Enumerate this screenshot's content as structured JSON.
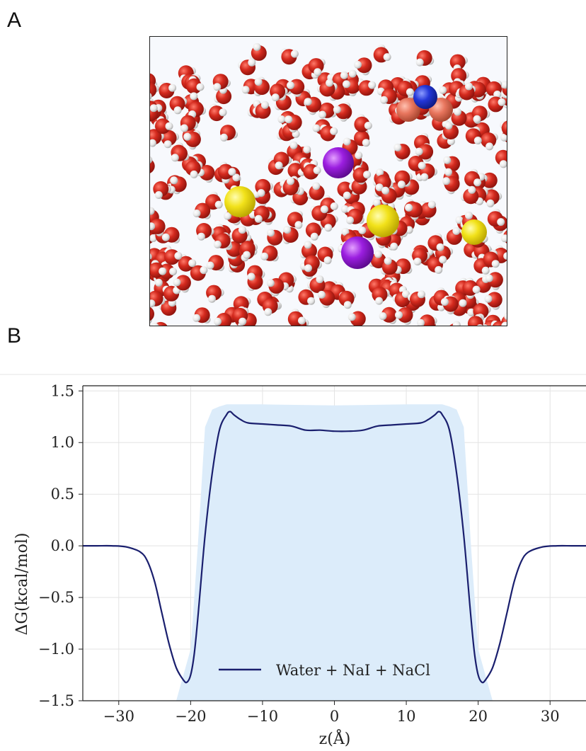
{
  "panels": {
    "a_label": "A",
    "b_label": "B"
  },
  "snapshot": {
    "atom_colors": {
      "oxygen": "#d42a1e",
      "hydrogen": "#eeeeee",
      "sodium": "#f2e21a",
      "iodide": "#9b1ee0",
      "nitrogen": "#2336d8",
      "carbon": "#e8765e"
    }
  },
  "chart_data": {
    "type": "line",
    "title": "",
    "xlabel": "z(Å)",
    "ylabel": "ΔG(kcal/mol)",
    "xlim": [
      -35,
      35
    ],
    "ylim": [
      -1.5,
      1.55
    ],
    "xticks": [
      -30,
      -20,
      -10,
      0,
      10,
      20,
      30
    ],
    "xtick_labels": [
      "−30",
      "−20",
      "−10",
      "0",
      "10",
      "20",
      "30"
    ],
    "yticks": [
      -1.5,
      -1.0,
      -0.5,
      0.0,
      0.5,
      1.0,
      1.5
    ],
    "ytick_labels": [
      "−1.5",
      "−1.0",
      "−0.5",
      "0.0",
      "0.5",
      "1.0",
      "1.5"
    ],
    "grid": true,
    "legend_position": "bottom-center",
    "series": [
      {
        "name": "Water + NaI + NaCl",
        "color": "#1a1f6e",
        "x": [
          -35,
          -33,
          -31,
          -29,
          -27,
          -26,
          -25,
          -24,
          -23,
          -22,
          -21,
          -20.5,
          -20,
          -19.5,
          -19,
          -18,
          -17,
          -16,
          -15,
          -14.5,
          -14,
          -13,
          -12,
          -10,
          -8,
          -6,
          -4,
          -2,
          0,
          2,
          4,
          6,
          8,
          10,
          12,
          13,
          14,
          14.5,
          15,
          16,
          17,
          18,
          19,
          19.5,
          20,
          20.5,
          21,
          22,
          23,
          24,
          25,
          26,
          27,
          29,
          31,
          33,
          35
        ],
        "y": [
          0.0,
          0.0,
          0.0,
          -0.01,
          -0.06,
          -0.15,
          -0.35,
          -0.65,
          -0.95,
          -1.18,
          -1.3,
          -1.32,
          -1.25,
          -1.05,
          -0.7,
          0.1,
          0.7,
          1.12,
          1.27,
          1.3,
          1.27,
          1.22,
          1.19,
          1.18,
          1.17,
          1.16,
          1.12,
          1.12,
          1.11,
          1.11,
          1.12,
          1.16,
          1.17,
          1.18,
          1.19,
          1.22,
          1.27,
          1.3,
          1.27,
          1.12,
          0.7,
          0.1,
          -0.7,
          -1.05,
          -1.25,
          -1.32,
          -1.3,
          -1.18,
          -0.95,
          -0.65,
          -0.35,
          -0.15,
          -0.06,
          -0.01,
          0.0,
          0.0,
          0.0
        ]
      }
    ],
    "band": {
      "color": "#dcecfa",
      "x": [
        -23.5,
        -22,
        -20,
        -19,
        -18,
        -17,
        -16,
        -15,
        -10,
        0,
        10,
        15,
        16,
        17,
        18,
        19,
        20,
        22,
        23.5
      ],
      "upper": [
        -1.5,
        -1.5,
        -1.0,
        0.0,
        1.15,
        1.32,
        1.35,
        1.37,
        1.37,
        1.36,
        1.37,
        1.37,
        1.35,
        1.32,
        1.15,
        0.0,
        -1.0,
        -1.5,
        -1.5
      ],
      "lower": [
        -1.5,
        -1.5,
        -1.5,
        -1.5,
        -1.5,
        -1.5,
        -1.5,
        -1.5,
        -1.5,
        -1.5,
        -1.5,
        -1.5,
        -1.5,
        -1.5,
        -1.5,
        -1.5,
        -1.5,
        -1.5,
        -1.5
      ]
    }
  }
}
